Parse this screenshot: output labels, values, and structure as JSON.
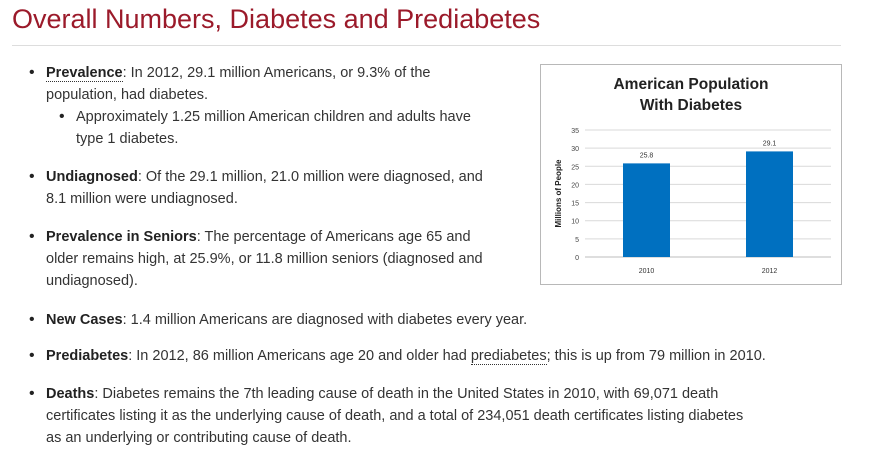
{
  "page": {
    "title": "Overall Numbers, Diabetes and Prediabetes"
  },
  "bullets": {
    "prevalence": {
      "label": "Prevalence",
      "text_line1": ": In 2012, 29.1 million Americans, or 9.3% of the",
      "text_line2": "population, had diabetes.",
      "sub_line1": "Approximately 1.25 million American children and adults have",
      "sub_line2": "type 1 diabetes."
    },
    "undiagnosed": {
      "label": "Undiagnosed",
      "text_line1": ": Of the 29.1 million, 21.0 million were diagnosed, and",
      "text_line2": "8.1 million were undiagnosed."
    },
    "seniors": {
      "label": "Prevalence in Seniors",
      "text_line1": ": The percentage of Americans age 65 and",
      "text_line2": "older remains high, at 25.9%, or 11.8 million seniors (diagnosed and",
      "text_line3": "undiagnosed)."
    },
    "new_cases": {
      "label": "New Cases",
      "text": ": 1.4 million Americans are diagnosed with diabetes every year."
    },
    "prediabetes": {
      "label": "Prediabetes",
      "text_before": ": In 2012, 86 million Americans age 20 and older had ",
      "link": "prediabetes",
      "text_after": "; this is up from 79 million in 2010."
    },
    "deaths": {
      "label": "Deaths",
      "text_line1": ": Diabetes remains the 7th leading cause of death in the United States in 2010, with 69,071 death",
      "text_line2": "certificates listing it as the underlying cause of death, and a total of 234,051 death certificates listing diabetes",
      "text_line3": "as an underlying or contributing cause of death."
    }
  },
  "chart_data": {
    "type": "bar",
    "title_line1": "American Population",
    "title_line2": "With Diabetes",
    "ylabel": "Millions of People",
    "xlabel": "",
    "categories": [
      "2010",
      "2012"
    ],
    "values": [
      25.8,
      29.1
    ],
    "data_labels": [
      "25.8",
      "29.1"
    ],
    "yticks": [
      0,
      5,
      10,
      15,
      20,
      25,
      30,
      35
    ],
    "ylim": [
      0,
      35
    ],
    "grid": true,
    "bar_color": "#0070c0"
  }
}
